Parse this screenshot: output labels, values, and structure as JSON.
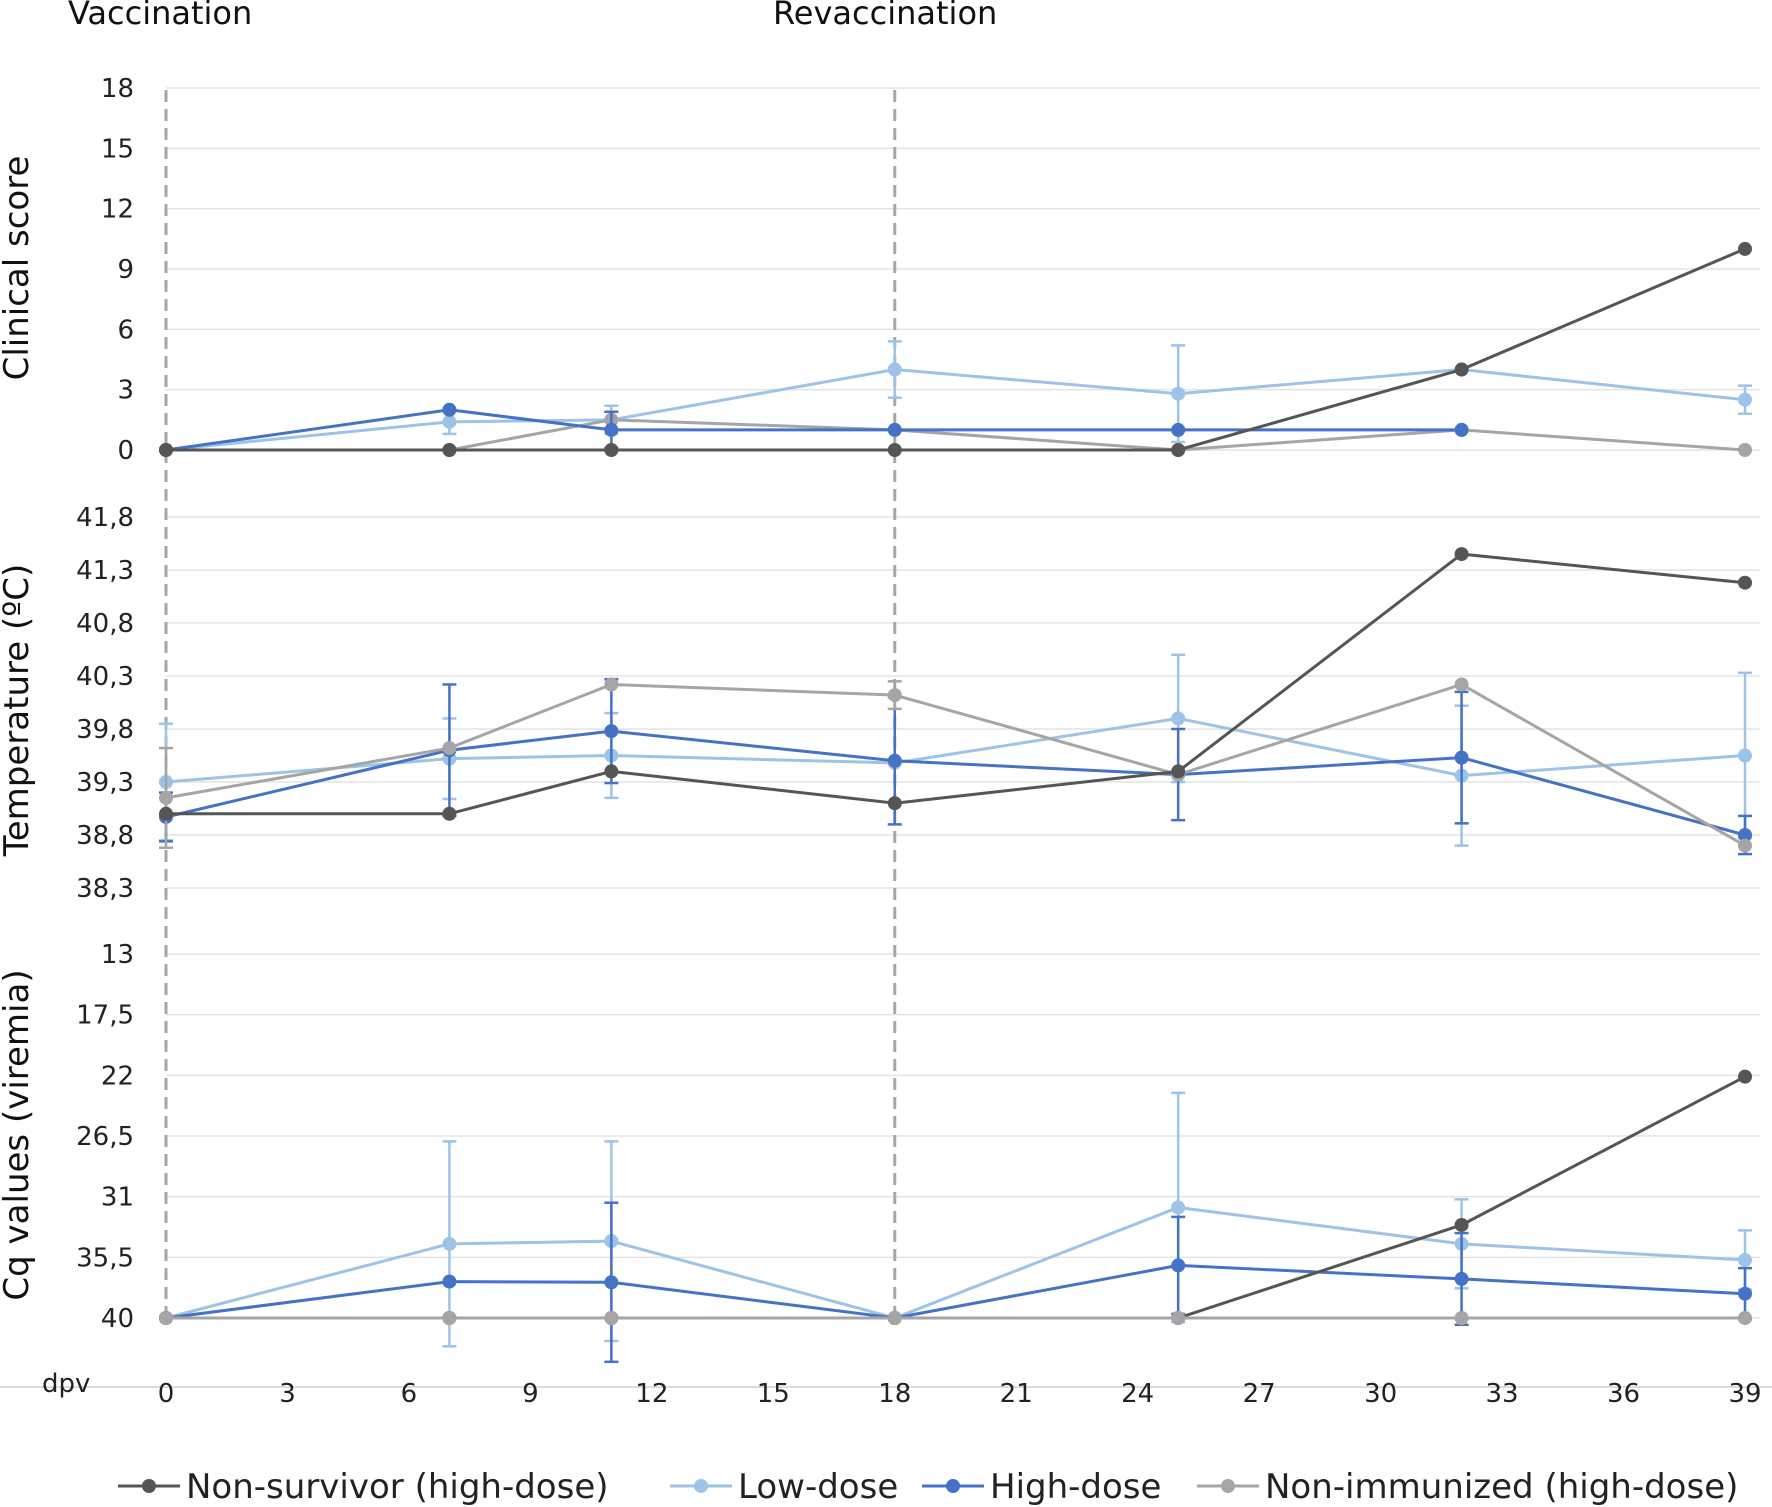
{
  "chart_data": {
    "type": "line",
    "top_labels": {
      "vaccination": "Vaccination",
      "revaccination": "Revaccination"
    },
    "event_lines_x": [
      0,
      18
    ],
    "xlabel": "dpv",
    "x_ticks": [
      "0",
      "3",
      "6",
      "9",
      "12",
      "15",
      "18",
      "21",
      "24",
      "27",
      "30",
      "33",
      "36",
      "39"
    ],
    "x_range": [
      0,
      39
    ],
    "legend": {
      "position": "bottom",
      "entries": [
        {
          "name": "Non-survivor (high-dose)",
          "color": "#555555"
        },
        {
          "name": "Low-dose",
          "color": "#9dc3e6"
        },
        {
          "name": "High-dose",
          "color": "#4472c4"
        },
        {
          "name": "Non-immunized (high-dose)",
          "color": "#a5a5a5"
        }
      ]
    },
    "panels": [
      {
        "id": "clinical",
        "ylabel": "Clinical score",
        "y_ticks": [
          "0",
          "3",
          "6",
          "9",
          "12",
          "15",
          "18"
        ],
        "ylim": [
          0,
          18
        ],
        "inverted": false,
        "series": [
          {
            "name": "Low-dose",
            "color": "#9dc3e6",
            "points": [
              {
                "x": 0,
                "y": 0
              },
              {
                "x": 7,
                "y": 1.4,
                "err": 0.6
              },
              {
                "x": 11,
                "y": 1.5,
                "err": 0.7
              },
              {
                "x": 18,
                "y": 4,
                "err": 1.4
              },
              {
                "x": 25,
                "y": 2.8,
                "err": 2.4
              },
              {
                "x": 32,
                "y": 4
              },
              {
                "x": 39,
                "y": 2.5,
                "err": 0.7
              }
            ]
          },
          {
            "name": "Non-immunized (high-dose)",
            "color": "#a5a5a5",
            "points": [
              {
                "x": 0,
                "y": 0
              },
              {
                "x": 7,
                "y": 0
              },
              {
                "x": 11,
                "y": 1.5
              },
              {
                "x": 18,
                "y": 1
              },
              {
                "x": 25,
                "y": 0
              },
              {
                "x": 32,
                "y": 1
              },
              {
                "x": 39,
                "y": 0
              }
            ]
          },
          {
            "name": "High-dose",
            "color": "#4472c4",
            "points": [
              {
                "x": 0,
                "y": 0
              },
              {
                "x": 7,
                "y": 2
              },
              {
                "x": 11,
                "y": 1,
                "err": 0.9
              },
              {
                "x": 18,
                "y": 1
              },
              {
                "x": 25,
                "y": 1
              },
              {
                "x": 32,
                "y": 1
              }
            ]
          },
          {
            "name": "Non-survivor (high-dose)",
            "color": "#555555",
            "points": [
              {
                "x": 0,
                "y": 0
              },
              {
                "x": 7,
                "y": 0
              },
              {
                "x": 11,
                "y": 0
              },
              {
                "x": 18,
                "y": 0
              },
              {
                "x": 25,
                "y": 0
              },
              {
                "x": 32,
                "y": 4
              },
              {
                "x": 39,
                "y": 10
              }
            ]
          }
        ]
      },
      {
        "id": "temperature",
        "ylabel": "Temperature (ºC)",
        "y_ticks": [
          "38,3",
          "38,8",
          "39,3",
          "39,8",
          "40,3",
          "40,8",
          "41,3",
          "41,8"
        ],
        "ylim": [
          38.3,
          41.8
        ],
        "inverted": false,
        "series": [
          {
            "name": "Low-dose",
            "color": "#9dc3e6",
            "points": [
              {
                "x": 0,
                "y": 39.3,
                "err": 0.55
              },
              {
                "x": 7,
                "y": 39.52,
                "err": 0.38
              },
              {
                "x": 11,
                "y": 39.55,
                "err": 0.4
              },
              {
                "x": 18,
                "y": 39.48
              },
              {
                "x": 25,
                "y": 39.9,
                "err": 0.6
              },
              {
                "x": 32,
                "y": 39.36,
                "err": 0.66
              },
              {
                "x": 39,
                "y": 39.55,
                "err": 0.78
              }
            ]
          },
          {
            "name": "High-dose",
            "color": "#4472c4",
            "points": [
              {
                "x": 0,
                "y": 38.97,
                "err": 0.23
              },
              {
                "x": 7,
                "y": 39.6,
                "err": 0.62
              },
              {
                "x": 11,
                "y": 39.78,
                "err": 0.49
              },
              {
                "x": 18,
                "y": 39.5,
                "err": 0.6
              },
              {
                "x": 25,
                "y": 39.37,
                "err": 0.43
              },
              {
                "x": 32,
                "y": 39.53,
                "err": 0.62
              },
              {
                "x": 39,
                "y": 38.8,
                "err": 0.18
              }
            ]
          },
          {
            "name": "Non-immunized (high-dose)",
            "color": "#a5a5a5",
            "points": [
              {
                "x": 0,
                "y": 39.15,
                "err": 0.47
              },
              {
                "x": 7,
                "y": 39.62
              },
              {
                "x": 11,
                "y": 40.22
              },
              {
                "x": 18,
                "y": 40.12,
                "err": 0.13
              },
              {
                "x": 25,
                "y": 39.37
              },
              {
                "x": 32,
                "y": 40.22
              },
              {
                "x": 39,
                "y": 38.7
              }
            ]
          },
          {
            "name": "Non-survivor (high-dose)",
            "color": "#555555",
            "points": [
              {
                "x": 0,
                "y": 39.0
              },
              {
                "x": 7,
                "y": 39.0
              },
              {
                "x": 11,
                "y": 39.4
              },
              {
                "x": 18,
                "y": 39.1
              },
              {
                "x": 25,
                "y": 39.4
              },
              {
                "x": 32,
                "y": 41.45
              },
              {
                "x": 39,
                "y": 41.18
              }
            ]
          }
        ]
      },
      {
        "id": "viremia",
        "ylabel": "Cq values (viremia)",
        "y_ticks": [
          "40",
          "35,5",
          "31",
          "26,5",
          "22",
          "17,5",
          "13"
        ],
        "ylim": [
          13,
          40
        ],
        "inverted": true,
        "series": [
          {
            "name": "Low-dose",
            "color": "#9dc3e6",
            "points": [
              {
                "x": 0,
                "y": 40
              },
              {
                "x": 7,
                "y": 34.5,
                "err": 7.6
              },
              {
                "x": 11,
                "y": 34.3,
                "err": 7.4
              },
              {
                "x": 18,
                "y": 40
              },
              {
                "x": 25,
                "y": 31.8,
                "err": 8.5
              },
              {
                "x": 32,
                "y": 34.5,
                "err": 3.3
              },
              {
                "x": 39,
                "y": 35.7,
                "err": 2.2
              }
            ]
          },
          {
            "name": "High-dose",
            "color": "#4472c4",
            "points": [
              {
                "x": 0,
                "y": 40
              },
              {
                "x": 7,
                "y": 37.3
              },
              {
                "x": 11,
                "y": 37.35,
                "err": 5.9
              },
              {
                "x": 18,
                "y": 40
              },
              {
                "x": 25,
                "y": 36.1,
                "err": 3.6
              },
              {
                "x": 32,
                "y": 37.1,
                "err": 3.4
              },
              {
                "x": 39,
                "y": 38.2,
                "err": 1.9
              }
            ]
          },
          {
            "name": "Non-survivor (high-dose)",
            "color": "#555555",
            "points": [
              {
                "x": 0,
                "y": 40
              },
              {
                "x": 7,
                "y": 40
              },
              {
                "x": 11,
                "y": 40
              },
              {
                "x": 18,
                "y": 40
              },
              {
                "x": 25,
                "y": 40
              },
              {
                "x": 32,
                "y": 33.1
              },
              {
                "x": 39,
                "y": 22.1
              }
            ]
          },
          {
            "name": "Non-immunized (high-dose)",
            "color": "#a5a5a5",
            "points": [
              {
                "x": 0,
                "y": 40
              },
              {
                "x": 7,
                "y": 40
              },
              {
                "x": 11,
                "y": 40
              },
              {
                "x": 18,
                "y": 40
              },
              {
                "x": 25,
                "y": 40
              },
              {
                "x": 32,
                "y": 40
              },
              {
                "x": 39,
                "y": 40
              }
            ]
          }
        ]
      }
    ]
  }
}
